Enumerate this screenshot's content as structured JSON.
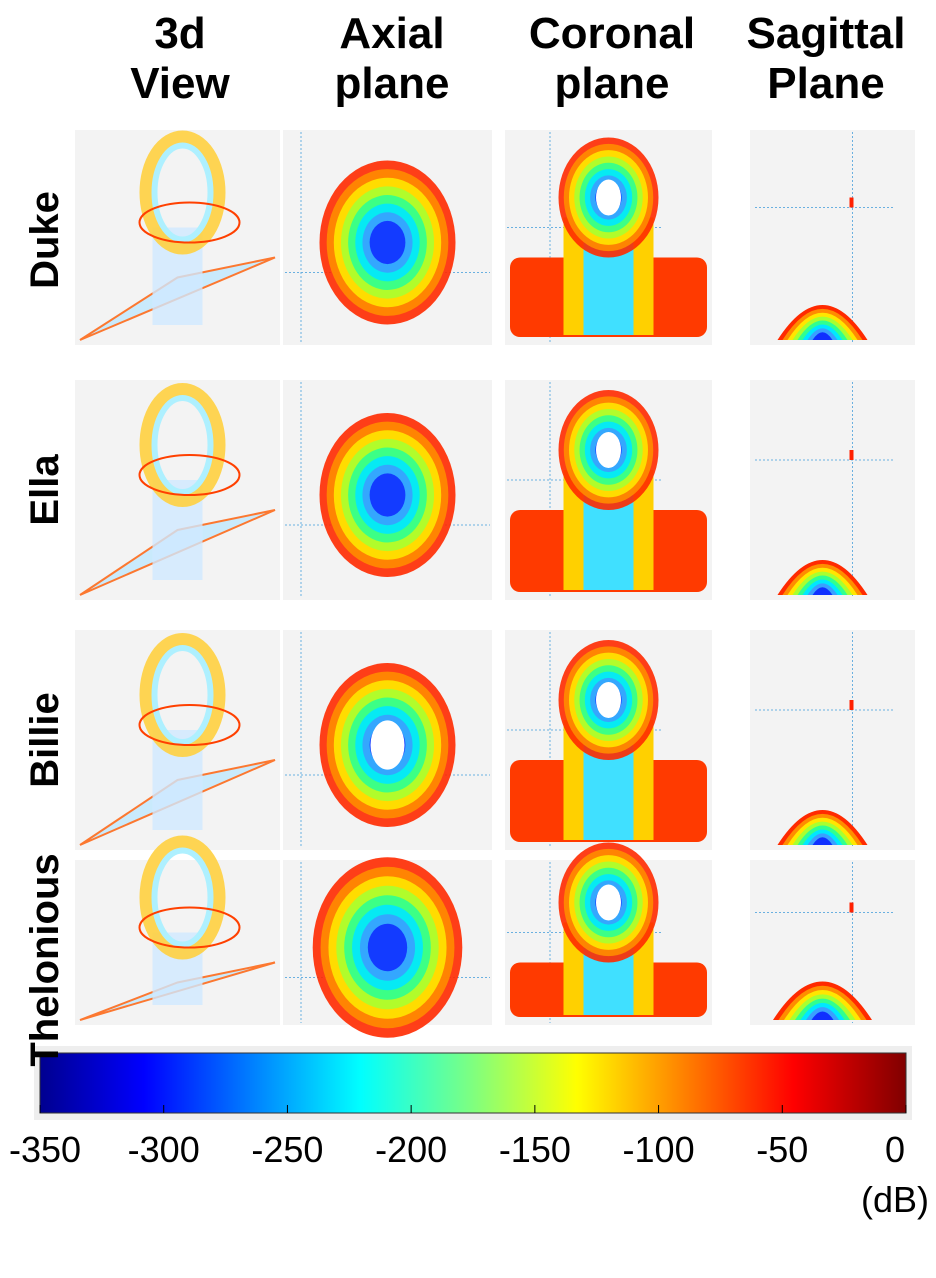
{
  "columns": [
    "3d View",
    "Axial plane",
    "Coronal plane",
    "Sagittal Plane"
  ],
  "rows": [
    "Duke",
    "Ella",
    "Billie",
    "Thelonious"
  ],
  "colorbar": {
    "lim": [
      -350,
      0
    ],
    "ticks": [
      -350,
      -300,
      -250,
      -200,
      -150,
      -100,
      -50,
      0
    ],
    "unit": "(dB)"
  }
}
